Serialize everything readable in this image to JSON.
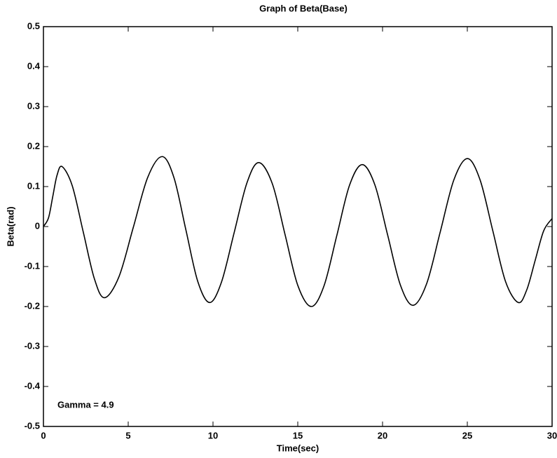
{
  "chart_data": {
    "type": "line",
    "title": "Graph of Beta(Base)",
    "xlabel": "Time(sec)",
    "ylabel": "Beta(rad)",
    "annotation": "Gamma = 4.9",
    "x": [
      0,
      0.3,
      0.55,
      0.8,
      1.1,
      1.7,
      2.35,
      3.0,
      3.6,
      4.45,
      5.3,
      6.15,
      7.0,
      7.7,
      8.4,
      9.1,
      9.8,
      10.5,
      11.25,
      12.0,
      12.7,
      13.5,
      14.25,
      15.0,
      15.8,
      16.55,
      17.3,
      18.05,
      18.8,
      19.55,
      20.3,
      21.05,
      21.8,
      22.6,
      23.4,
      24.2,
      25.0,
      25.75,
      26.5,
      27.25,
      28.0,
      28.5,
      29.0,
      29.5,
      30
    ],
    "series": [
      {
        "name": "Beta",
        "color": "#000000",
        "values": [
          0,
          0.022,
          0.075,
          0.128,
          0.15,
          0.102,
          -0.014,
          -0.13,
          -0.178,
          -0.126,
          -0.002,
          0.123,
          0.175,
          0.122,
          -0.008,
          -0.137,
          -0.19,
          -0.139,
          -0.015,
          0.109,
          0.16,
          0.107,
          -0.02,
          -0.147,
          -0.2,
          -0.148,
          -0.023,
          0.103,
          0.155,
          0.104,
          -0.021,
          -0.146,
          -0.197,
          -0.143,
          -0.014,
          0.116,
          0.17,
          0.117,
          -0.01,
          -0.137,
          -0.19,
          -0.159,
          -0.085,
          -0.011,
          0.02
        ]
      }
    ],
    "xlim": [
      0,
      30
    ],
    "xticks": [
      0,
      5,
      10,
      15,
      20,
      25,
      30
    ],
    "ylim": [
      -0.5,
      0.5
    ],
    "yticks": [
      -0.5,
      -0.4,
      -0.3,
      -0.2,
      -0.1,
      0,
      0.1,
      0.2,
      0.3,
      0.4,
      0.5
    ],
    "grid": false
  }
}
